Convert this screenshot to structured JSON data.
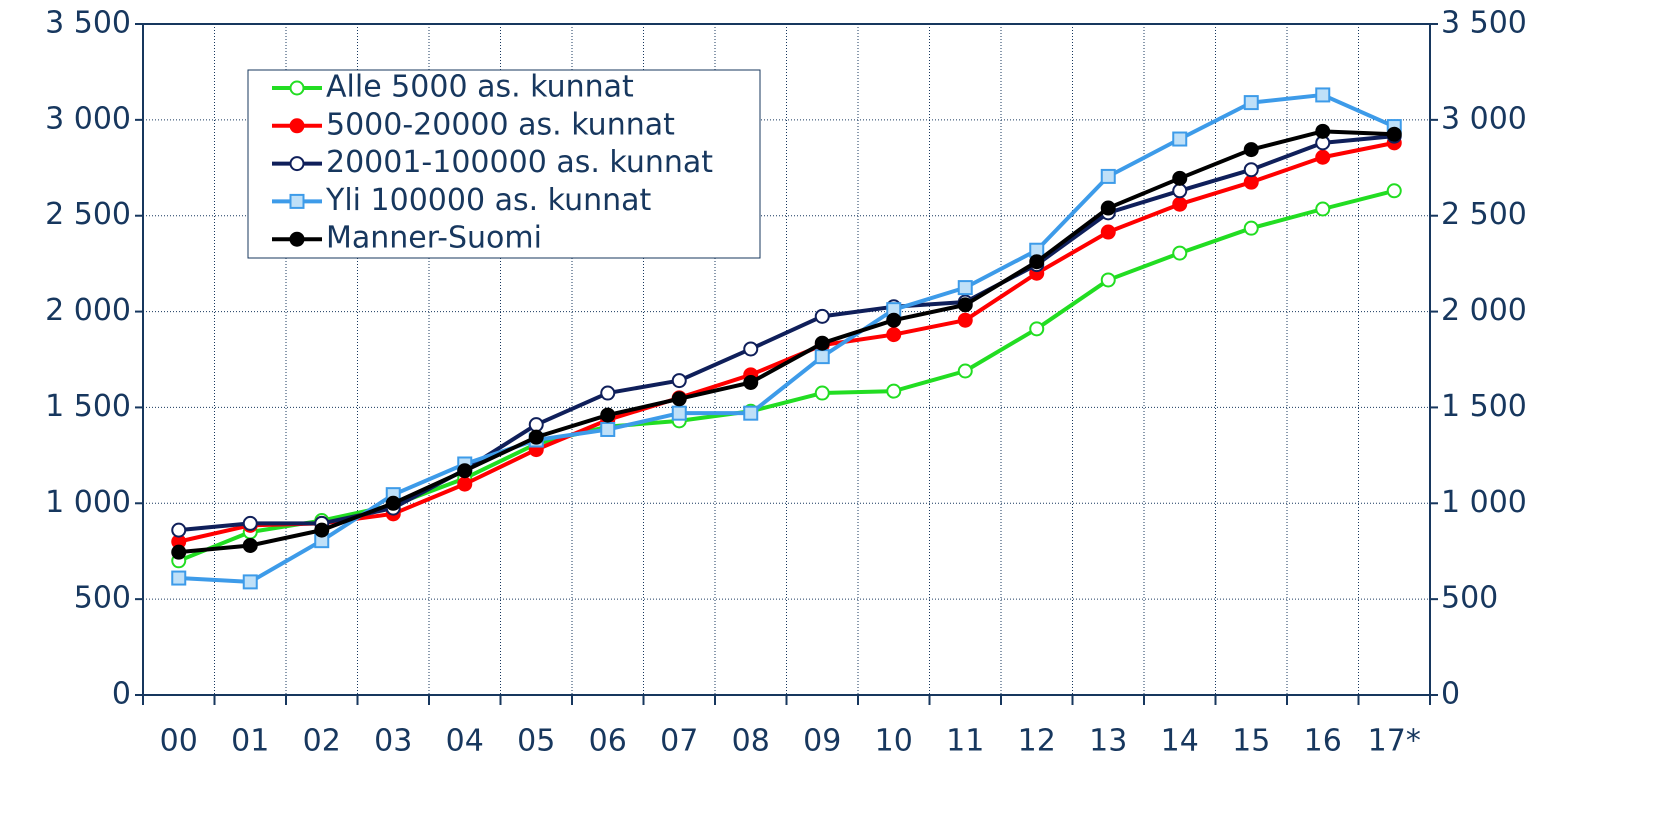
{
  "chart_data": {
    "type": "line",
    "categories": [
      "00",
      "01",
      "02",
      "03",
      "04",
      "05",
      "06",
      "07",
      "08",
      "09",
      "10",
      "11",
      "12",
      "13",
      "14",
      "15",
      "16",
      "17*"
    ],
    "ylim": [
      0,
      3500
    ],
    "yticks": [
      0,
      500,
      {
        "value": 1000,
        "label": "1 000"
      },
      {
        "value": 1500,
        "label": "1 500"
      },
      {
        "value": 2000,
        "label": "2 000"
      },
      {
        "value": 2500,
        "label": "2 500"
      },
      {
        "value": 3000,
        "label": "3 000"
      },
      {
        "value": 3500,
        "label": "3 500"
      }
    ],
    "grid": true,
    "legend": "upper left",
    "series": [
      {
        "name": "Alle 5000 as. kunnat",
        "color": "#22dd22",
        "marker": "circle",
        "marker_fill": "#ffffff",
        "values": [
          700,
          850,
          910,
          990,
          1130,
          1310,
          1400,
          1430,
          1480,
          1575,
          1585,
          1690,
          1910,
          2165,
          2305,
          2435,
          2535,
          2630
        ]
      },
      {
        "name": "5000-20000 as. kunnat",
        "color": "#ff0000",
        "marker": "circle",
        "marker_fill": "#ff0000",
        "values": [
          800,
          885,
          895,
          945,
          1100,
          1280,
          1435,
          1550,
          1670,
          1825,
          1880,
          1955,
          2200,
          2415,
          2560,
          2675,
          2805,
          2880
        ]
      },
      {
        "name": "20001-100000 as. kunnat",
        "color": "#0f1f5a",
        "marker": "circle",
        "marker_fill": "#ffffff",
        "values": [
          860,
          895,
          895,
          975,
          1175,
          1410,
          1575,
          1640,
          1805,
          1975,
          2025,
          2050,
          2245,
          2515,
          2630,
          2740,
          2880,
          2915
        ]
      },
      {
        "name": "Yli 100000 as. kunnat",
        "color": "#3d9be9",
        "marker": "square",
        "marker_fill": "#bfe0f8",
        "values": [
          610,
          590,
          805,
          1045,
          1205,
          1330,
          1385,
          1470,
          1470,
          1765,
          2010,
          2125,
          2320,
          2705,
          2900,
          3090,
          3130,
          2965
        ]
      },
      {
        "name": "Manner-Suomi",
        "color": "#000000",
        "marker": "circle",
        "marker_fill": "#000000",
        "values": [
          745,
          780,
          860,
          1000,
          1170,
          1345,
          1460,
          1545,
          1630,
          1835,
          1955,
          2035,
          2260,
          2540,
          2695,
          2845,
          2940,
          2925
        ]
      }
    ]
  }
}
